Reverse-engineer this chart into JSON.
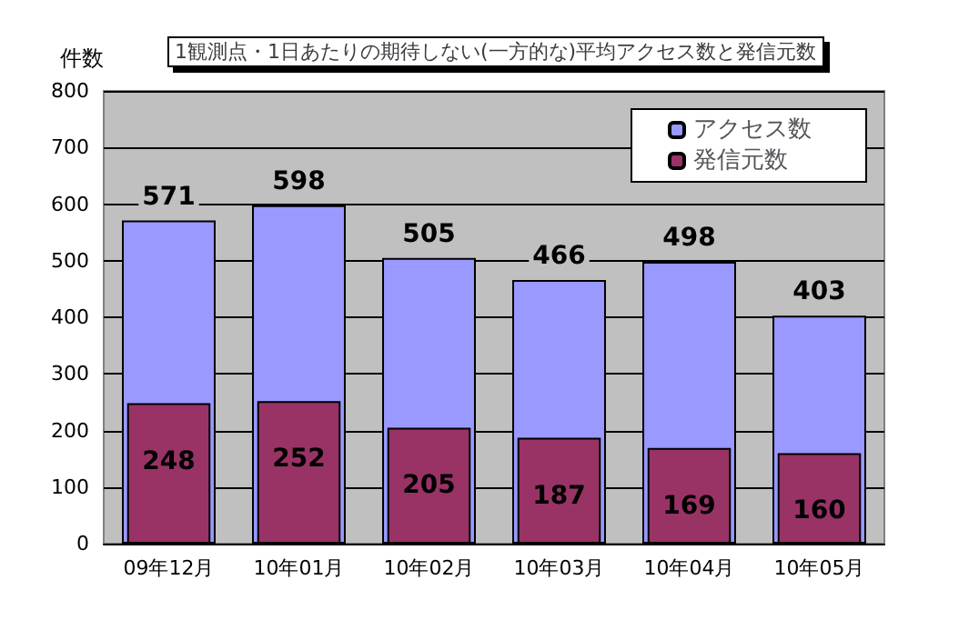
{
  "chart_data": {
    "type": "bar",
    "title": "1観測点・1日あたりの期待しない(一方的な)平均アクセス数と発信元数",
    "ylabel": "件数",
    "categories": [
      "09年12月",
      "10年01月",
      "10年02月",
      "10年03月",
      "10年04月",
      "10年05月"
    ],
    "series": [
      {
        "name": "アクセス数",
        "color": "#9999ff",
        "values": [
          571,
          598,
          505,
          466,
          498,
          403
        ]
      },
      {
        "name": "発信元数",
        "color": "#993366",
        "values": [
          248,
          252,
          205,
          187,
          169,
          160
        ]
      }
    ],
    "ylim": [
      0,
      800
    ],
    "yticks": [
      0,
      100,
      200,
      300,
      400,
      500,
      600,
      700,
      800
    ],
    "grid": "y",
    "legend": "top right",
    "data_labels": true
  }
}
